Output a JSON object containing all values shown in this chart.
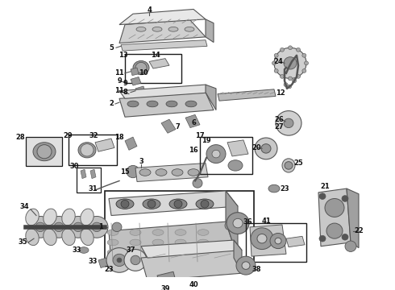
{
  "bg_color": "#ffffff",
  "fg_color": "#1a1a1a",
  "part_color": "#888888",
  "light_gray": "#c8c8c8",
  "mid_gray": "#999999",
  "dark_gray": "#555555",
  "figsize": [
    4.9,
    3.6
  ],
  "dpi": 100
}
